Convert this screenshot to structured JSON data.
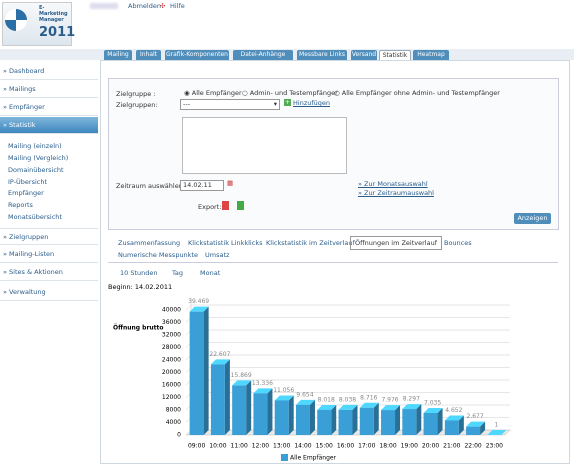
{
  "header": {
    "product": "E-Marketing Manager",
    "year": "2011",
    "links": [
      "Abmelden",
      "Hilfe"
    ]
  },
  "nav": {
    "items": [
      "» Dashboard",
      "» Mailings",
      "» Empfänger",
      "» Statistik"
    ],
    "sub_items": [
      "Mailing (einzeln)",
      "Mailing (Vergleich)",
      "Domainübersicht",
      "IP-Übersicht",
      "Empfänger",
      "Reports",
      "Monatsübersicht"
    ],
    "items_after": [
      "» Zielgruppen",
      "» Mailing-Listen",
      "» Sites & Aktionen",
      "» Verwaltung"
    ]
  },
  "tabs": [
    "Mailing",
    "Inhalt",
    "Grafik-Komponenten",
    "Datei-Anhänge",
    "Messbare Links",
    "Versand",
    "Statistik",
    "Heatmap"
  ],
  "form": {
    "zielgruppe_label": "Zielgruppe :",
    "options": [
      "Alle Empfänger",
      "Admin- und Testempfänger",
      "Alle Empfänger ohne Admin- und Testempfänger"
    ],
    "zielgruppen_label": "Zielgruppen:",
    "select": "---",
    "add": "Hinzufügen",
    "zeitraum_label": "Zeitraum auswählen:",
    "date": "14.02.11",
    "links": [
      "» Zur Monatsauswahl",
      "» Zur Zeitraumauswahl"
    ],
    "export": "Export:",
    "button": "Anzeigen"
  },
  "subtabs": [
    "Zusammenfassung",
    "Klickstatistik Linkklicks",
    "Klickstatistik im Zeitverlauf",
    "Öffnungen im Zeitverlauf",
    "Bounces",
    "Numerische Messpunkte",
    "Umsatz"
  ],
  "ranges": [
    "10 Stunden",
    "Tag",
    "Monat"
  ],
  "chart_data": {
    "type": "bar",
    "title": "Beginn: 14.02.2011",
    "y_label": "Öffnung brutto",
    "categories": [
      "09:00",
      "10:00",
      "11:00",
      "12:00",
      "13:00",
      "14:00",
      "15:00",
      "16:00",
      "17:00",
      "18:00",
      "19:00",
      "20:00",
      "21:00",
      "22:00",
      "23:00"
    ],
    "series": [
      {
        "name": "Alle Empfänger",
        "color": "#3a9fd6",
        "values": [
          39469,
          22607,
          15869,
          13336,
          11056,
          9654,
          8018,
          8038,
          8716,
          7976,
          8297,
          7035,
          4652,
          2677,
          1
        ],
        "value_labels": [
          "39.469",
          "22.607",
          "15.869",
          "13.336",
          "11.056",
          "9.654",
          "8.018",
          "8.038",
          "8.716",
          "7.976",
          "8.297",
          "7.035",
          "4.652",
          "2.677",
          "1"
        ]
      }
    ],
    "ylim": [
      0,
      44000
    ],
    "yticks": [
      0,
      4000,
      8000,
      12000,
      16000,
      20000,
      24000,
      28000,
      32000,
      36000,
      40000
    ],
    "grid": true
  }
}
